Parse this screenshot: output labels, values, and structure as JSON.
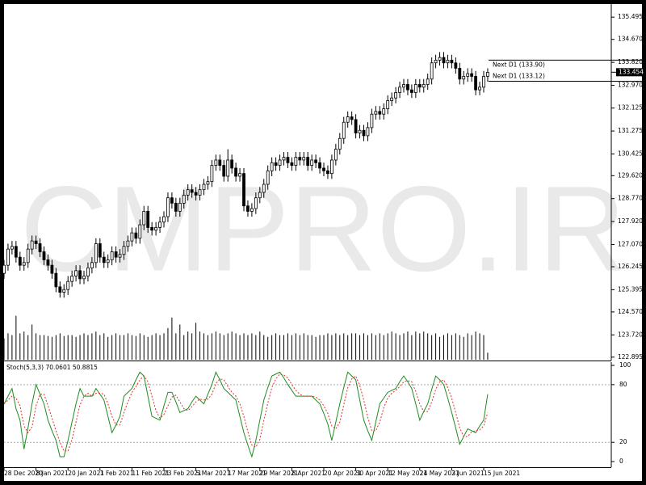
{
  "chart_data": [
    {
      "type": "candlestick",
      "categories": [
        "28 Dec 2020",
        null,
        null,
        null,
        null,
        null,
        null,
        null,
        "8 Jan 2021",
        null,
        null,
        null,
        null,
        null,
        null,
        null,
        "20 Jan 2021",
        null,
        null,
        null,
        null,
        null,
        null,
        null,
        "1 Feb 2021",
        null,
        null,
        null,
        null,
        null,
        null,
        null,
        "11 Feb 2021",
        null,
        null,
        null,
        null,
        null,
        null,
        null,
        "23 Feb 2021",
        null,
        null,
        null,
        null,
        null,
        null,
        null,
        "5 Mar 2021",
        null,
        null,
        null,
        null,
        null,
        null,
        null,
        "17 Mar 2021",
        null,
        null,
        null,
        null,
        null,
        null,
        null,
        "29 Mar 2021",
        null,
        null,
        null,
        null,
        null,
        null,
        null,
        "8 Apr 2021",
        null,
        null,
        null,
        null,
        null,
        null,
        null,
        "20 Apr 2021",
        null,
        null,
        null,
        null,
        null,
        null,
        null,
        "30 Apr 2021",
        null,
        null,
        null,
        null,
        null,
        null,
        null,
        "12 May 2021",
        null,
        null,
        null,
        null,
        null,
        null,
        null,
        "24 May 2021",
        null,
        null,
        null,
        null,
        null,
        null,
        null,
        "3 Jun 2021",
        null,
        null,
        null,
        null,
        null,
        null,
        null,
        "15 Jun 2021",
        null
      ],
      "open": [
        126.0,
        126.3,
        126.9,
        127.0,
        126.6,
        126.3,
        126.4,
        126.9,
        127.2,
        127.1,
        126.8,
        126.5,
        126.3,
        126.0,
        125.5,
        125.3,
        125.4,
        125.7,
        125.9,
        126.1,
        125.8,
        125.9,
        126.2,
        126.4,
        127.1,
        126.6,
        126.4,
        126.5,
        126.8,
        126.6,
        126.7,
        127.0,
        127.2,
        127.5,
        127.3,
        127.8,
        128.3,
        127.7,
        127.6,
        127.7,
        127.9,
        128.1,
        128.8,
        128.6,
        128.3,
        128.6,
        128.9,
        129.1,
        129.0,
        128.9,
        129.1,
        129.3,
        129.4,
        130.0,
        130.2,
        130.0,
        129.6,
        130.2,
        129.9,
        129.6,
        129.7,
        128.5,
        128.3,
        128.4,
        128.8,
        129.0,
        129.3,
        129.8,
        130.1,
        130.0,
        130.2,
        130.3,
        130.1,
        130.0,
        130.3,
        130.2,
        130.3,
        130.0,
        130.2,
        130.1,
        129.9,
        129.8,
        129.7,
        130.2,
        130.6,
        131.0,
        131.6,
        131.8,
        131.7,
        131.2,
        131.3,
        131.1,
        131.4,
        131.9,
        132.0,
        131.9,
        132.1,
        132.4,
        132.5,
        132.7,
        132.9,
        133.0,
        132.8,
        132.7,
        133.0,
        132.9,
        133.0,
        133.2,
        133.8,
        133.9,
        134.0,
        133.8,
        133.9,
        133.8,
        133.6,
        133.2,
        133.3,
        133.4,
        133.3,
        132.8,
        132.9,
        133.3
      ],
      "high": [
        126.5,
        127.1,
        127.2,
        127.2,
        126.8,
        126.6,
        127.1,
        127.4,
        127.4,
        127.3,
        127.0,
        126.7,
        126.5,
        126.2,
        125.7,
        125.6,
        125.9,
        126.1,
        126.3,
        126.3,
        126.1,
        126.4,
        126.6,
        127.3,
        127.3,
        126.8,
        126.7,
        127.0,
        127.0,
        126.9,
        127.2,
        127.4,
        127.7,
        127.7,
        128.0,
        128.5,
        128.5,
        127.9,
        127.9,
        128.1,
        128.3,
        129.0,
        129.0,
        128.8,
        128.8,
        129.1,
        129.3,
        129.3,
        129.2,
        129.3,
        129.5,
        129.6,
        130.2,
        130.4,
        130.4,
        130.2,
        130.6,
        130.4,
        130.1,
        129.9,
        129.9,
        128.7,
        128.6,
        129.0,
        129.2,
        129.5,
        130.0,
        130.3,
        130.3,
        130.4,
        130.5,
        130.5,
        130.3,
        130.5,
        130.5,
        130.5,
        130.5,
        130.4,
        130.4,
        130.3,
        130.1,
        130.0,
        130.4,
        130.8,
        131.2,
        131.8,
        132.0,
        132.0,
        131.9,
        131.5,
        131.5,
        131.6,
        132.1,
        132.2,
        132.2,
        132.3,
        132.6,
        132.7,
        132.9,
        133.1,
        133.2,
        133.2,
        133.0,
        133.2,
        133.2,
        133.2,
        133.4,
        134.0,
        134.1,
        134.2,
        134.2,
        134.1,
        134.1,
        134.0,
        133.8,
        133.5,
        133.6,
        133.6,
        133.5,
        133.1,
        133.5,
        133.6
      ],
      "low": [
        125.8,
        126.1,
        126.7,
        126.4,
        126.1,
        126.1,
        126.2,
        126.7,
        126.9,
        126.6,
        126.3,
        126.1,
        125.8,
        125.3,
        125.1,
        125.1,
        125.2,
        125.5,
        125.7,
        125.6,
        125.6,
        125.7,
        126.0,
        126.2,
        126.4,
        126.2,
        126.2,
        126.3,
        126.4,
        126.4,
        126.5,
        126.8,
        127.0,
        127.1,
        127.1,
        127.6,
        127.5,
        127.4,
        127.4,
        127.5,
        127.7,
        127.9,
        128.4,
        128.1,
        128.1,
        128.4,
        128.7,
        128.8,
        128.7,
        128.7,
        128.9,
        129.1,
        129.2,
        129.8,
        129.8,
        129.4,
        129.4,
        129.7,
        129.4,
        129.4,
        128.3,
        128.1,
        128.1,
        128.2,
        128.6,
        128.8,
        129.1,
        129.6,
        129.8,
        129.8,
        130.0,
        129.9,
        129.8,
        129.8,
        130.0,
        130.0,
        129.8,
        129.8,
        129.9,
        129.7,
        129.6,
        129.5,
        129.5,
        130.0,
        130.4,
        130.8,
        131.4,
        131.5,
        131.0,
        131.0,
        130.9,
        130.9,
        131.2,
        131.7,
        131.7,
        131.7,
        131.9,
        132.2,
        132.3,
        132.5,
        132.7,
        132.6,
        132.5,
        132.5,
        132.7,
        132.7,
        132.8,
        133.0,
        133.6,
        133.7,
        133.6,
        133.6,
        133.6,
        133.4,
        133.0,
        133.0,
        133.1,
        133.1,
        132.6,
        132.6,
        132.7,
        133.1
      ],
      "close": [
        126.3,
        126.9,
        127.0,
        126.6,
        126.3,
        126.4,
        126.9,
        127.2,
        127.1,
        126.8,
        126.5,
        126.3,
        126.0,
        125.5,
        125.3,
        125.4,
        125.7,
        125.9,
        126.1,
        125.8,
        125.9,
        126.2,
        126.4,
        127.1,
        126.6,
        126.4,
        126.5,
        126.8,
        126.6,
        126.7,
        127.0,
        127.2,
        127.5,
        127.3,
        127.8,
        128.3,
        127.7,
        127.6,
        127.7,
        127.9,
        128.1,
        128.8,
        128.6,
        128.3,
        128.6,
        128.9,
        129.1,
        129.0,
        128.9,
        129.1,
        129.3,
        129.4,
        130.0,
        130.2,
        130.0,
        129.6,
        130.2,
        129.9,
        129.6,
        129.7,
        128.5,
        128.3,
        128.4,
        128.8,
        129.0,
        129.3,
        129.8,
        130.1,
        130.0,
        130.2,
        130.3,
        130.1,
        130.0,
        130.3,
        130.2,
        130.3,
        130.0,
        130.2,
        130.1,
        129.9,
        129.8,
        129.7,
        130.2,
        130.6,
        131.0,
        131.6,
        131.8,
        131.7,
        131.2,
        131.3,
        131.1,
        131.4,
        131.9,
        132.0,
        131.9,
        132.1,
        132.4,
        132.5,
        132.7,
        132.9,
        133.0,
        132.8,
        132.7,
        133.0,
        132.9,
        133.0,
        133.2,
        133.8,
        133.9,
        134.0,
        133.8,
        133.9,
        133.8,
        133.6,
        133.2,
        133.3,
        133.4,
        133.3,
        132.8,
        132.9,
        133.3,
        133.45
      ],
      "bull_color": "#ffffff",
      "bear_color": "#000000",
      "ylim": [
        122.8,
        135.83
      ],
      "yticks": [
        135.495,
        {
          "value": 134.67,
          "label": "134.670"
        },
        {
          "value": 133.82,
          "label": "133.820"
        },
        {
          "value": 132.97,
          "label": "132.970"
        },
        132.125,
        131.275,
        130.425,
        {
          "value": 129.62,
          "label": "129.620"
        },
        {
          "value": 128.77,
          "label": "128.770"
        },
        {
          "value": 127.92,
          "label": "127.920"
        },
        {
          "value": 127.07,
          "label": "127.070"
        },
        126.245,
        125.395,
        {
          "value": 124.57,
          "label": "124.570"
        },
        {
          "value": 123.72,
          "label": "123.720"
        },
        122.895
      ],
      "volumes": [
        24,
        30,
        28,
        50,
        30,
        32,
        28,
        40,
        30,
        28,
        28,
        27,
        26,
        28,
        30,
        27,
        28,
        28,
        26,
        28,
        30,
        28,
        30,
        32,
        28,
        30,
        26,
        28,
        30,
        28,
        28,
        30,
        28,
        27,
        30,
        28,
        26,
        28,
        30,
        28,
        30,
        36,
        48,
        30,
        40,
        28,
        32,
        30,
        42,
        32,
        30,
        28,
        30,
        32,
        30,
        28,
        30,
        32,
        30,
        28,
        30,
        28,
        30,
        28,
        32,
        28,
        26,
        28,
        30,
        28,
        28,
        30,
        28,
        30,
        28,
        30,
        28,
        28,
        26,
        28,
        28,
        30,
        28,
        30,
        28,
        30,
        28,
        30,
        30,
        28,
        30,
        28,
        30,
        28,
        30,
        28,
        30,
        32,
        30,
        28,
        30,
        32,
        28,
        32,
        30,
        32,
        30,
        28,
        30,
        26,
        28,
        30,
        28,
        30,
        28,
        26,
        30,
        28,
        32,
        30,
        28,
        8
      ],
      "volume_color": "#000000",
      "volume_lim": [
        0,
        400
      ],
      "levels": [
        {
          "label": "Next D1 (133.90)",
          "value": 133.9
        },
        {
          "label": "Next D1 (133.12)",
          "value": 133.12
        }
      ],
      "current_price": 133.454,
      "watermark": "CMPRO.IR"
    },
    {
      "type": "line",
      "title": "Stoch(5,3,3) 70.0601 50.8815",
      "series": [
        {
          "color": "#1e8c1e",
          "dash": false,
          "values": [
            60,
            68,
            76,
            55,
            43,
            13,
            35,
            60,
            80,
            70,
            60,
            43,
            32,
            22,
            5,
            5,
            22,
            41,
            60,
            76,
            68,
            68,
            68,
            76,
            70,
            64,
            47,
            30,
            38,
            47,
            68,
            72,
            76,
            85,
            93,
            89,
            68,
            47,
            45,
            43,
            58,
            72,
            72,
            62,
            51,
            53,
            55,
            62,
            68,
            64,
            60,
            70,
            80,
            93,
            85,
            76,
            72,
            68,
            64,
            47,
            30,
            17,
            5,
            22,
            43,
            64,
            77,
            89,
            91,
            93,
            87,
            80,
            74,
            68,
            68,
            68,
            68,
            68,
            64,
            60,
            50,
            39,
            22,
            41,
            60,
            77,
            93,
            89,
            85,
            64,
            43,
            32,
            22,
            41,
            60,
            66,
            72,
            74,
            76,
            83,
            89,
            83,
            76,
            60,
            43,
            52,
            60,
            75,
            89,
            85,
            80,
            66,
            51,
            35,
            18,
            26,
            34,
            32,
            30,
            37,
            43,
            70.0601
          ]
        },
        {
          "color": "#e03030",
          "dash": true,
          "values": [
            60,
            64,
            68,
            66,
            58,
            37,
            30,
            36,
            58,
            70,
            70,
            58,
            45,
            32,
            20,
            11,
            11,
            23,
            41,
            59,
            68,
            71,
            68,
            71,
            71,
            70,
            60,
            47,
            38,
            38,
            51,
            62,
            72,
            78,
            85,
            89,
            83,
            68,
            53,
            45,
            49,
            58,
            67,
            69,
            62,
            55,
            53,
            57,
            62,
            65,
            64,
            65,
            70,
            81,
            86,
            85,
            78,
            72,
            68,
            60,
            47,
            31,
            17,
            15,
            23,
            43,
            61,
            77,
            86,
            91,
            90,
            87,
            80,
            74,
            70,
            68,
            68,
            68,
            67,
            64,
            58,
            50,
            37,
            34,
            41,
            59,
            77,
            86,
            89,
            79,
            64,
            46,
            32,
            32,
            41,
            56,
            66,
            71,
            74,
            78,
            83,
            84,
            83,
            73,
            60,
            52,
            52,
            62,
            75,
            83,
            85,
            77,
            66,
            51,
            35,
            26,
            26,
            31,
            32,
            33,
            37,
            50.8815
          ]
        }
      ],
      "ylim": [
        -5.9,
        103.4
      ],
      "yticks": [
        100,
        80,
        20,
        0
      ],
      "levels": [
        80,
        20
      ]
    }
  ]
}
